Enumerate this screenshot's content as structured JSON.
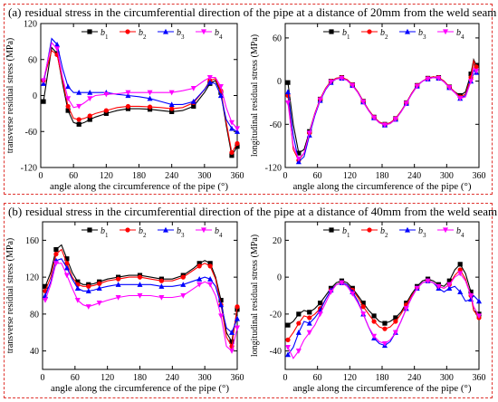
{
  "panels": [
    {
      "label": "(a)",
      "title": "residual stress in the circumferential direction of the pipe at a distance of 20mm from the weld seam"
    },
    {
      "label": "(b)",
      "title": "residual stress in the circumferential direction of the pipe at a distance of 40mm from the weld seam"
    }
  ],
  "colors": {
    "b1": "#000000",
    "b2": "#ff0000",
    "b3": "#0000ff",
    "b4": "#ff00ff",
    "frame": "#e0342f"
  },
  "chart_data": [
    {
      "type": "line",
      "xlabel": "angle along the circumference of the pipe (°)",
      "ylabel": "transverse residual stress (MPa)",
      "xlim": [
        0,
        360
      ],
      "ylim": [
        -120,
        120
      ],
      "xticks": [
        0,
        60,
        120,
        180,
        240,
        300,
        360
      ],
      "yticks": [
        -120,
        -60,
        0,
        60,
        120
      ],
      "legend": "top-right",
      "x": [
        5,
        20,
        30,
        40,
        50,
        60,
        70,
        80,
        90,
        100,
        120,
        140,
        160,
        180,
        200,
        220,
        240,
        260,
        280,
        300,
        310,
        320,
        330,
        340,
        350,
        360
      ],
      "series": [
        {
          "name": "b1",
          "values": [
            -10,
            80,
            70,
            20,
            -25,
            -45,
            -48,
            -45,
            -40,
            -36,
            -30,
            -25,
            -22,
            -22,
            -23,
            -25,
            -27,
            -25,
            -18,
            5,
            20,
            25,
            5,
            -50,
            -100,
            -85
          ]
        },
        {
          "name": "b2",
          "values": [
            25,
            75,
            68,
            25,
            -18,
            -38,
            -40,
            -38,
            -34,
            -30,
            -25,
            -20,
            -18,
            -18,
            -19,
            -20,
            -22,
            -20,
            -12,
            10,
            25,
            28,
            8,
            -45,
            -95,
            -80
          ]
        },
        {
          "name": "b3",
          "values": [
            20,
            95,
            85,
            45,
            15,
            5,
            5,
            5,
            5,
            5,
            5,
            2,
            0,
            -2,
            -5,
            -10,
            -15,
            -15,
            -10,
            10,
            22,
            20,
            0,
            -40,
            -55,
            -60
          ]
        },
        {
          "name": "b4",
          "values": [
            25,
            88,
            78,
            30,
            -5,
            -20,
            -18,
            -12,
            -5,
            0,
            2,
            3,
            5,
            5,
            5,
            5,
            5,
            8,
            12,
            25,
            30,
            30,
            15,
            -20,
            -45,
            -55
          ]
        }
      ]
    },
    {
      "type": "line",
      "xlabel": "",
      "ylabel": "longitudinal residual stress (MPa)",
      "xlim": [
        0,
        360
      ],
      "ylim": [
        -120,
        80
      ],
      "xticks": [
        0,
        60,
        120,
        180,
        240,
        300,
        360
      ],
      "yticks": [
        -120,
        -60,
        0,
        60
      ],
      "legend": "top-right",
      "x": [
        5,
        15,
        25,
        35,
        45,
        55,
        65,
        75,
        85,
        95,
        105,
        115,
        125,
        135,
        145,
        155,
        165,
        175,
        185,
        195,
        205,
        215,
        225,
        235,
        245,
        255,
        265,
        275,
        285,
        295,
        305,
        315,
        325,
        335,
        345,
        350,
        355
      ],
      "series": [
        {
          "name": "b1",
          "values": [
            -2,
            -60,
            -100,
            -95,
            -70,
            -45,
            -25,
            -10,
            0,
            4,
            5,
            2,
            -5,
            -15,
            -28,
            -40,
            -50,
            -57,
            -60,
            -58,
            -52,
            -42,
            -30,
            -17,
            -6,
            0,
            4,
            6,
            5,
            0,
            -8,
            -15,
            -20,
            -15,
            10,
            30,
            22
          ]
        },
        {
          "name": "b2",
          "values": [
            -20,
            -95,
            -110,
            -100,
            -72,
            -45,
            -25,
            -10,
            0,
            4,
            5,
            2,
            -5,
            -15,
            -28,
            -40,
            -50,
            -57,
            -60,
            -58,
            -52,
            -42,
            -30,
            -17,
            -6,
            0,
            4,
            6,
            5,
            0,
            -8,
            -15,
            -22,
            -18,
            5,
            28,
            20
          ]
        },
        {
          "name": "b3",
          "values": [
            -15,
            -75,
            -112,
            -105,
            -75,
            -48,
            -27,
            -12,
            -2,
            3,
            4,
            1,
            -6,
            -16,
            -29,
            -41,
            -51,
            -58,
            -61,
            -59,
            -53,
            -43,
            -31,
            -18,
            -7,
            0,
            3,
            5,
            4,
            -1,
            -9,
            -16,
            -24,
            -20,
            0,
            15,
            12
          ]
        },
        {
          "name": "b4",
          "values": [
            -30,
            -90,
            -108,
            -100,
            -72,
            -46,
            -26,
            -11,
            -1,
            3,
            4,
            1,
            -6,
            -16,
            -29,
            -41,
            -51,
            -58,
            -61,
            -59,
            -53,
            -43,
            -31,
            -18,
            -7,
            0,
            3,
            5,
            4,
            -1,
            -9,
            -16,
            -24,
            -22,
            0,
            18,
            14
          ]
        }
      ]
    },
    {
      "type": "line",
      "xlabel": "",
      "ylabel": "transverse residual stress (MPa)",
      "xlim": [
        0,
        360
      ],
      "ylim": [
        20,
        180
      ],
      "xticks": [
        0,
        60,
        120,
        180,
        240,
        300,
        360
      ],
      "yticks": [
        40,
        80,
        120,
        160
      ],
      "legend": "top-right",
      "x": [
        5,
        15,
        25,
        35,
        45,
        55,
        65,
        75,
        85,
        95,
        105,
        120,
        140,
        160,
        180,
        200,
        220,
        240,
        260,
        280,
        290,
        300,
        310,
        320,
        330,
        340,
        350,
        360
      ],
      "series": [
        {
          "name": "b1",
          "values": [
            110,
            125,
            150,
            155,
            140,
            125,
            115,
            112,
            112,
            113,
            115,
            118,
            120,
            122,
            122,
            120,
            118,
            118,
            122,
            130,
            135,
            138,
            135,
            120,
            95,
            60,
            50,
            85
          ]
        },
        {
          "name": "b2",
          "values": [
            105,
            120,
            145,
            150,
            135,
            120,
            112,
            110,
            110,
            111,
            113,
            116,
            118,
            120,
            120,
            118,
            116,
            116,
            120,
            128,
            132,
            135,
            132,
            118,
            90,
            55,
            45,
            88
          ]
        },
        {
          "name": "b3",
          "values": [
            100,
            115,
            138,
            140,
            130,
            118,
            108,
            105,
            105,
            106,
            108,
            110,
            112,
            112,
            112,
            112,
            110,
            110,
            112,
            116,
            118,
            120,
            118,
            110,
            90,
            65,
            60,
            75
          ]
        },
        {
          "name": "b4",
          "values": [
            95,
            112,
            135,
            135,
            122,
            108,
            95,
            90,
            88,
            90,
            92,
            95,
            98,
            100,
            100,
            100,
            98,
            98,
            100,
            108,
            112,
            115,
            112,
            100,
            78,
            45,
            40,
            65
          ]
        }
      ]
    },
    {
      "type": "line",
      "xlabel": "",
      "ylabel": "longitudinal residual stress (MPa)",
      "xlim": [
        0,
        360
      ],
      "ylim": [
        -50,
        30
      ],
      "xticks": [
        0,
        60,
        120,
        180,
        240,
        300,
        360
      ],
      "yticks": [
        -40,
        -20,
        0,
        20
      ],
      "legend": "top-right",
      "x": [
        5,
        15,
        25,
        35,
        45,
        55,
        65,
        75,
        85,
        95,
        105,
        115,
        125,
        135,
        145,
        155,
        165,
        175,
        185,
        195,
        205,
        215,
        225,
        235,
        245,
        255,
        265,
        275,
        285,
        295,
        305,
        315,
        325,
        335,
        345,
        350,
        360
      ],
      "series": [
        {
          "name": "b1",
          "values": [
            -26,
            -24,
            -20,
            -18,
            -19,
            -17,
            -14,
            -10,
            -6,
            -3,
            -2,
            -3,
            -6,
            -10,
            -14,
            -18,
            -21,
            -24,
            -25,
            -24,
            -22,
            -19,
            -14,
            -9,
            -5,
            -2,
            -1,
            -2,
            -4,
            -5,
            -2,
            4,
            7,
            2,
            -8,
            -18,
            -20
          ]
        },
        {
          "name": "b2",
          "values": [
            -34,
            -30,
            -25,
            -21,
            -22,
            -20,
            -17,
            -12,
            -7,
            -4,
            -3,
            -4,
            -7,
            -11,
            -16,
            -20,
            -24,
            -27,
            -28,
            -27,
            -24,
            -20,
            -15,
            -10,
            -6,
            -3,
            -2,
            -3,
            -5,
            -6,
            -4,
            1,
            4,
            -1,
            -10,
            -18,
            -22
          ]
        },
        {
          "name": "b3",
          "values": [
            -42,
            -38,
            -30,
            -24,
            -25,
            -22,
            -18,
            -12,
            -7,
            -4,
            -3,
            -4,
            -8,
            -13,
            -20,
            -27,
            -33,
            -36,
            -37,
            -35,
            -30,
            -24,
            -17,
            -11,
            -6,
            -3,
            -2,
            -3,
            -6,
            -8,
            -6,
            -5,
            -8,
            -13,
            -12,
            -10,
            -13
          ]
        },
        {
          "name": "b4",
          "values": [
            -38,
            -44,
            -40,
            -34,
            -30,
            -26,
            -20,
            -14,
            -8,
            -4,
            -3,
            -5,
            -9,
            -14,
            -20,
            -27,
            -32,
            -35,
            -36,
            -34,
            -30,
            -24,
            -17,
            -11,
            -6,
            -3,
            -2,
            -3,
            -5,
            -6,
            -4,
            0,
            2,
            -2,
            -10,
            -16,
            -21
          ]
        }
      ]
    }
  ]
}
